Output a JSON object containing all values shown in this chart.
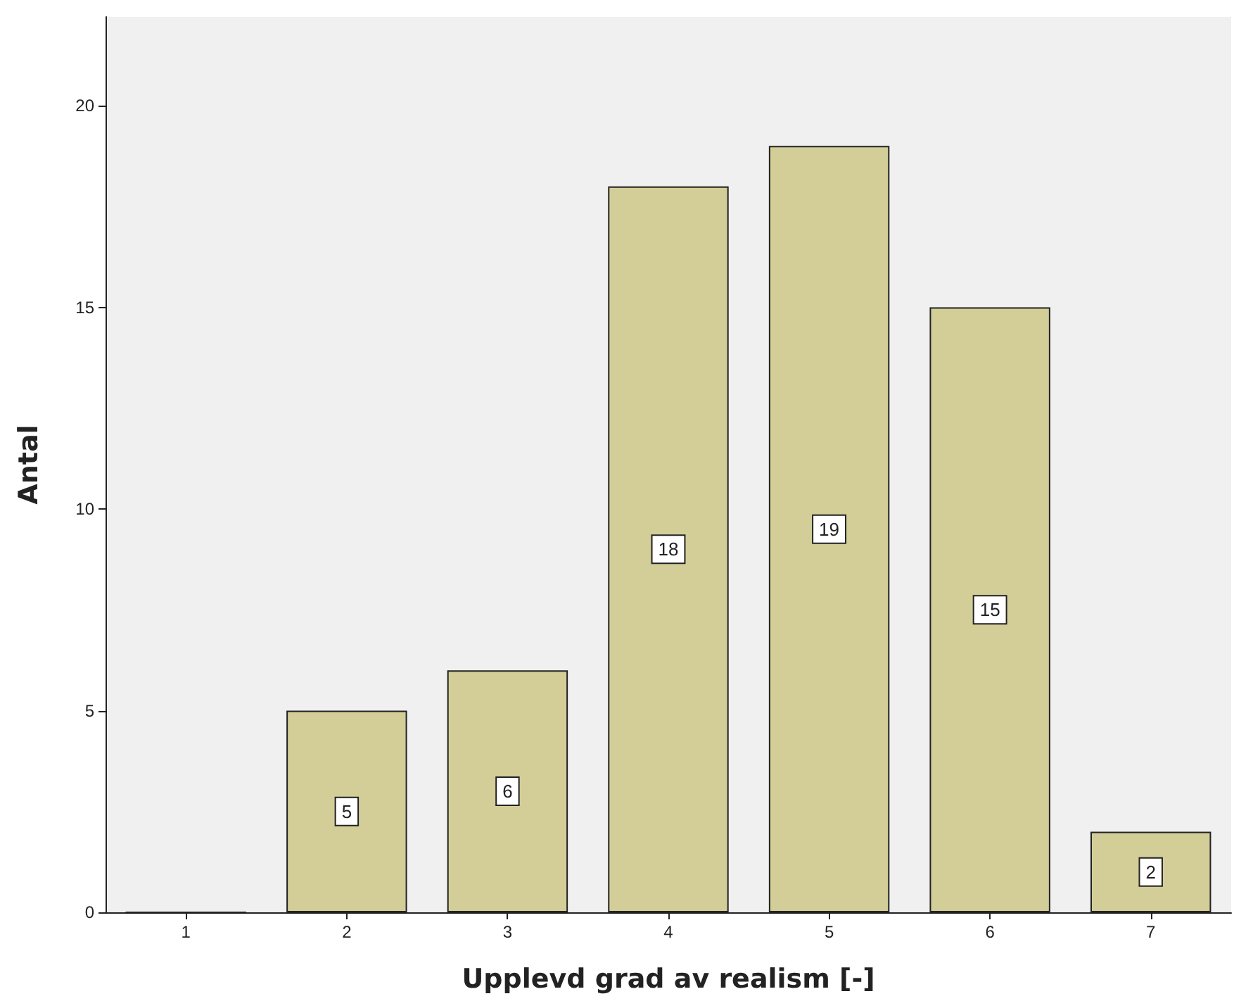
{
  "chart_data": {
    "type": "bar",
    "xlabel": "Upplevd grad av realism [-]",
    "ylabel": "Antal",
    "categories": [
      "1",
      "2",
      "3",
      "4",
      "5",
      "6",
      "7"
    ],
    "values": [
      0,
      5,
      6,
      18,
      19,
      15,
      2
    ],
    "value_labels": [
      null,
      "5",
      "6",
      "18",
      "19",
      "15",
      "2"
    ],
    "color": "#d3ce97",
    "ylim": [
      0,
      22.2
    ],
    "yticks": [
      0,
      5,
      10,
      15,
      20
    ],
    "grid": false
  }
}
